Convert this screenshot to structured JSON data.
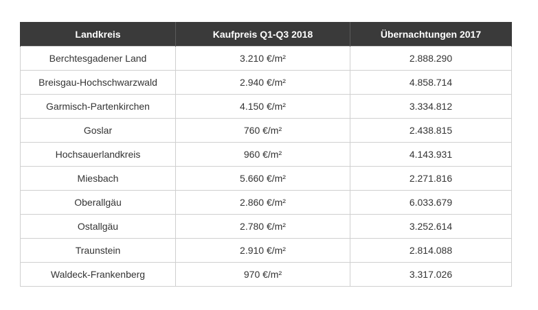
{
  "table": {
    "headers": [
      "Landkreis",
      "Kaufpreis Q1-Q3 2018",
      "Übernachtungen 2017"
    ],
    "rows": [
      [
        "Berchtesgadener Land",
        "3.210 €/m²",
        "2.888.290"
      ],
      [
        "Breisgau-Hochschwarzwald",
        "2.940 €/m²",
        "4.858.714"
      ],
      [
        "Garmisch-Partenkirchen",
        "4.150 €/m²",
        "3.334.812"
      ],
      [
        "Goslar",
        "760 €/m²",
        "2.438.815"
      ],
      [
        "Hochsauerlandkreis",
        "960 €/m²",
        "4.143.931"
      ],
      [
        "Miesbach",
        "5.660 €/m²",
        "2.271.816"
      ],
      [
        "Oberallgäu",
        "2.860 €/m²",
        "6.033.679"
      ],
      [
        "Ostallgäu",
        "2.780 €/m²",
        "3.252.614"
      ],
      [
        "Traunstein",
        "2.910 €/m²",
        "2.814.088"
      ],
      [
        "Waldeck-Frankenberg",
        "970 €/m²",
        "3.317.026"
      ]
    ]
  },
  "colors": {
    "header_bg": "#3a3a3a",
    "header_text": "#ffffff",
    "cell_text": "#333333",
    "border": "#cfcfcf"
  }
}
